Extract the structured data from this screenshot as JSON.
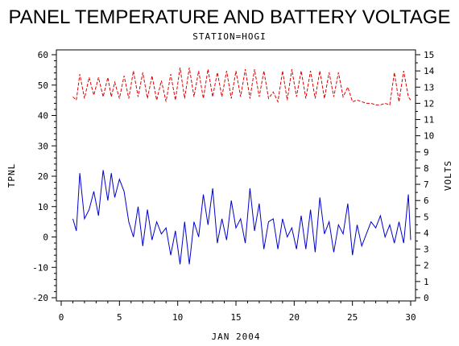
{
  "chart_data": {
    "type": "line",
    "title": "PANEL TEMPERATURE AND BATTERY VOLTAGE",
    "subtitle": "STATION=HOGI",
    "xlabel": "JAN 2004",
    "ylabel_left": "TPNL",
    "ylabel_right": "VOLTS",
    "xlim": [
      0,
      30
    ],
    "ylim_left": [
      -20,
      60
    ],
    "ylim_right": [
      0,
      15
    ],
    "x_ticks": [
      "0",
      "5",
      "10",
      "15",
      "20",
      "25",
      "30"
    ],
    "y_left_ticks": [
      "-20",
      "-10",
      "0",
      "10",
      "20",
      "30",
      "40",
      "50",
      "60"
    ],
    "y_right_ticks": [
      "0",
      "1",
      "2",
      "3",
      "4",
      "5",
      "6",
      "7",
      "8",
      "9",
      "10",
      "11",
      "12",
      "13",
      "14",
      "15"
    ],
    "grid": false,
    "series": [
      {
        "name": "TPNL",
        "axis": "left",
        "color": "#0000cc",
        "style": "solid",
        "x": [
          1.0,
          1.3,
          1.6,
          2.0,
          2.4,
          2.8,
          3.2,
          3.6,
          4.0,
          4.3,
          4.6,
          5.0,
          5.4,
          5.8,
          6.2,
          6.6,
          7.0,
          7.4,
          7.8,
          8.2,
          8.6,
          9.0,
          9.4,
          9.8,
          10.2,
          10.6,
          11.0,
          11.4,
          11.8,
          12.2,
          12.6,
          13.0,
          13.4,
          13.8,
          14.2,
          14.6,
          15.0,
          15.4,
          15.8,
          16.2,
          16.6,
          17.0,
          17.4,
          17.8,
          18.2,
          18.6,
          19.0,
          19.4,
          19.8,
          20.2,
          20.6,
          21.0,
          21.4,
          21.8,
          22.2,
          22.6,
          23.0,
          23.4,
          23.8,
          24.2,
          24.6,
          25.0,
          25.4,
          25.8,
          26.2,
          26.6,
          27.0,
          27.4,
          27.8,
          28.2,
          28.6,
          29.0,
          29.4,
          29.8,
          30.0
        ],
        "values": [
          6,
          2,
          21,
          6,
          9,
          15,
          7,
          22,
          12,
          21,
          13,
          19,
          15,
          5,
          0,
          10,
          -3,
          9,
          -1,
          5,
          1,
          3,
          -6,
          2,
          -9,
          5,
          -9,
          5,
          0,
          14,
          4,
          16,
          -2,
          6,
          -1,
          12,
          3,
          6,
          -2,
          16,
          2,
          11,
          -4,
          5,
          6,
          -4,
          6,
          0,
          3,
          -4,
          7,
          -4,
          9,
          -5,
          13,
          1,
          5,
          -5,
          4,
          1,
          11,
          -6,
          4,
          -3,
          1,
          5,
          3,
          7,
          0,
          4,
          -2,
          5,
          -2,
          14,
          -1
        ]
      },
      {
        "name": "VOLTS",
        "axis": "right",
        "color": "#dd0000",
        "style": "dashed",
        "x": [
          1.0,
          1.3,
          1.6,
          2.0,
          2.4,
          2.8,
          3.2,
          3.6,
          4.0,
          4.3,
          4.6,
          5.0,
          5.4,
          5.8,
          6.2,
          6.6,
          7.0,
          7.4,
          7.8,
          8.2,
          8.6,
          9.0,
          9.4,
          9.8,
          10.2,
          10.6,
          11.0,
          11.4,
          11.8,
          12.2,
          12.6,
          13.0,
          13.4,
          13.8,
          14.2,
          14.6,
          15.0,
          15.4,
          15.8,
          16.2,
          16.6,
          17.0,
          17.4,
          17.8,
          18.2,
          18.6,
          19.0,
          19.4,
          19.8,
          20.2,
          20.6,
          21.0,
          21.4,
          21.8,
          22.2,
          22.6,
          23.0,
          23.4,
          23.8,
          24.2,
          24.6,
          25.0,
          25.4,
          25.8,
          26.2,
          26.6,
          27.0,
          27.4,
          27.8,
          28.2,
          28.6,
          29.0,
          29.4,
          29.8,
          30.0
        ],
        "values": [
          12.4,
          12.2,
          13.8,
          12.3,
          13.6,
          12.5,
          13.6,
          12.4,
          13.6,
          12.4,
          13.3,
          12.3,
          13.7,
          12.3,
          14.0,
          12.4,
          13.9,
          12.3,
          13.7,
          12.2,
          13.4,
          12.1,
          13.8,
          12.2,
          14.2,
          12.3,
          14.2,
          12.4,
          14.0,
          12.3,
          14.1,
          12.4,
          13.9,
          12.4,
          14.0,
          12.3,
          14.0,
          12.4,
          14.1,
          12.3,
          14.1,
          12.4,
          14.0,
          12.3,
          12.7,
          12.1,
          14.0,
          12.2,
          14.1,
          12.4,
          14.0,
          12.3,
          14.0,
          12.3,
          14.0,
          12.3,
          13.9,
          12.4,
          13.9,
          12.4,
          13.0,
          12.1,
          12.2,
          12.1,
          12.0,
          12.0,
          11.9,
          11.9,
          12.0,
          11.9,
          13.9,
          12.1,
          14.0,
          12.4,
          12.2
        ]
      }
    ]
  }
}
